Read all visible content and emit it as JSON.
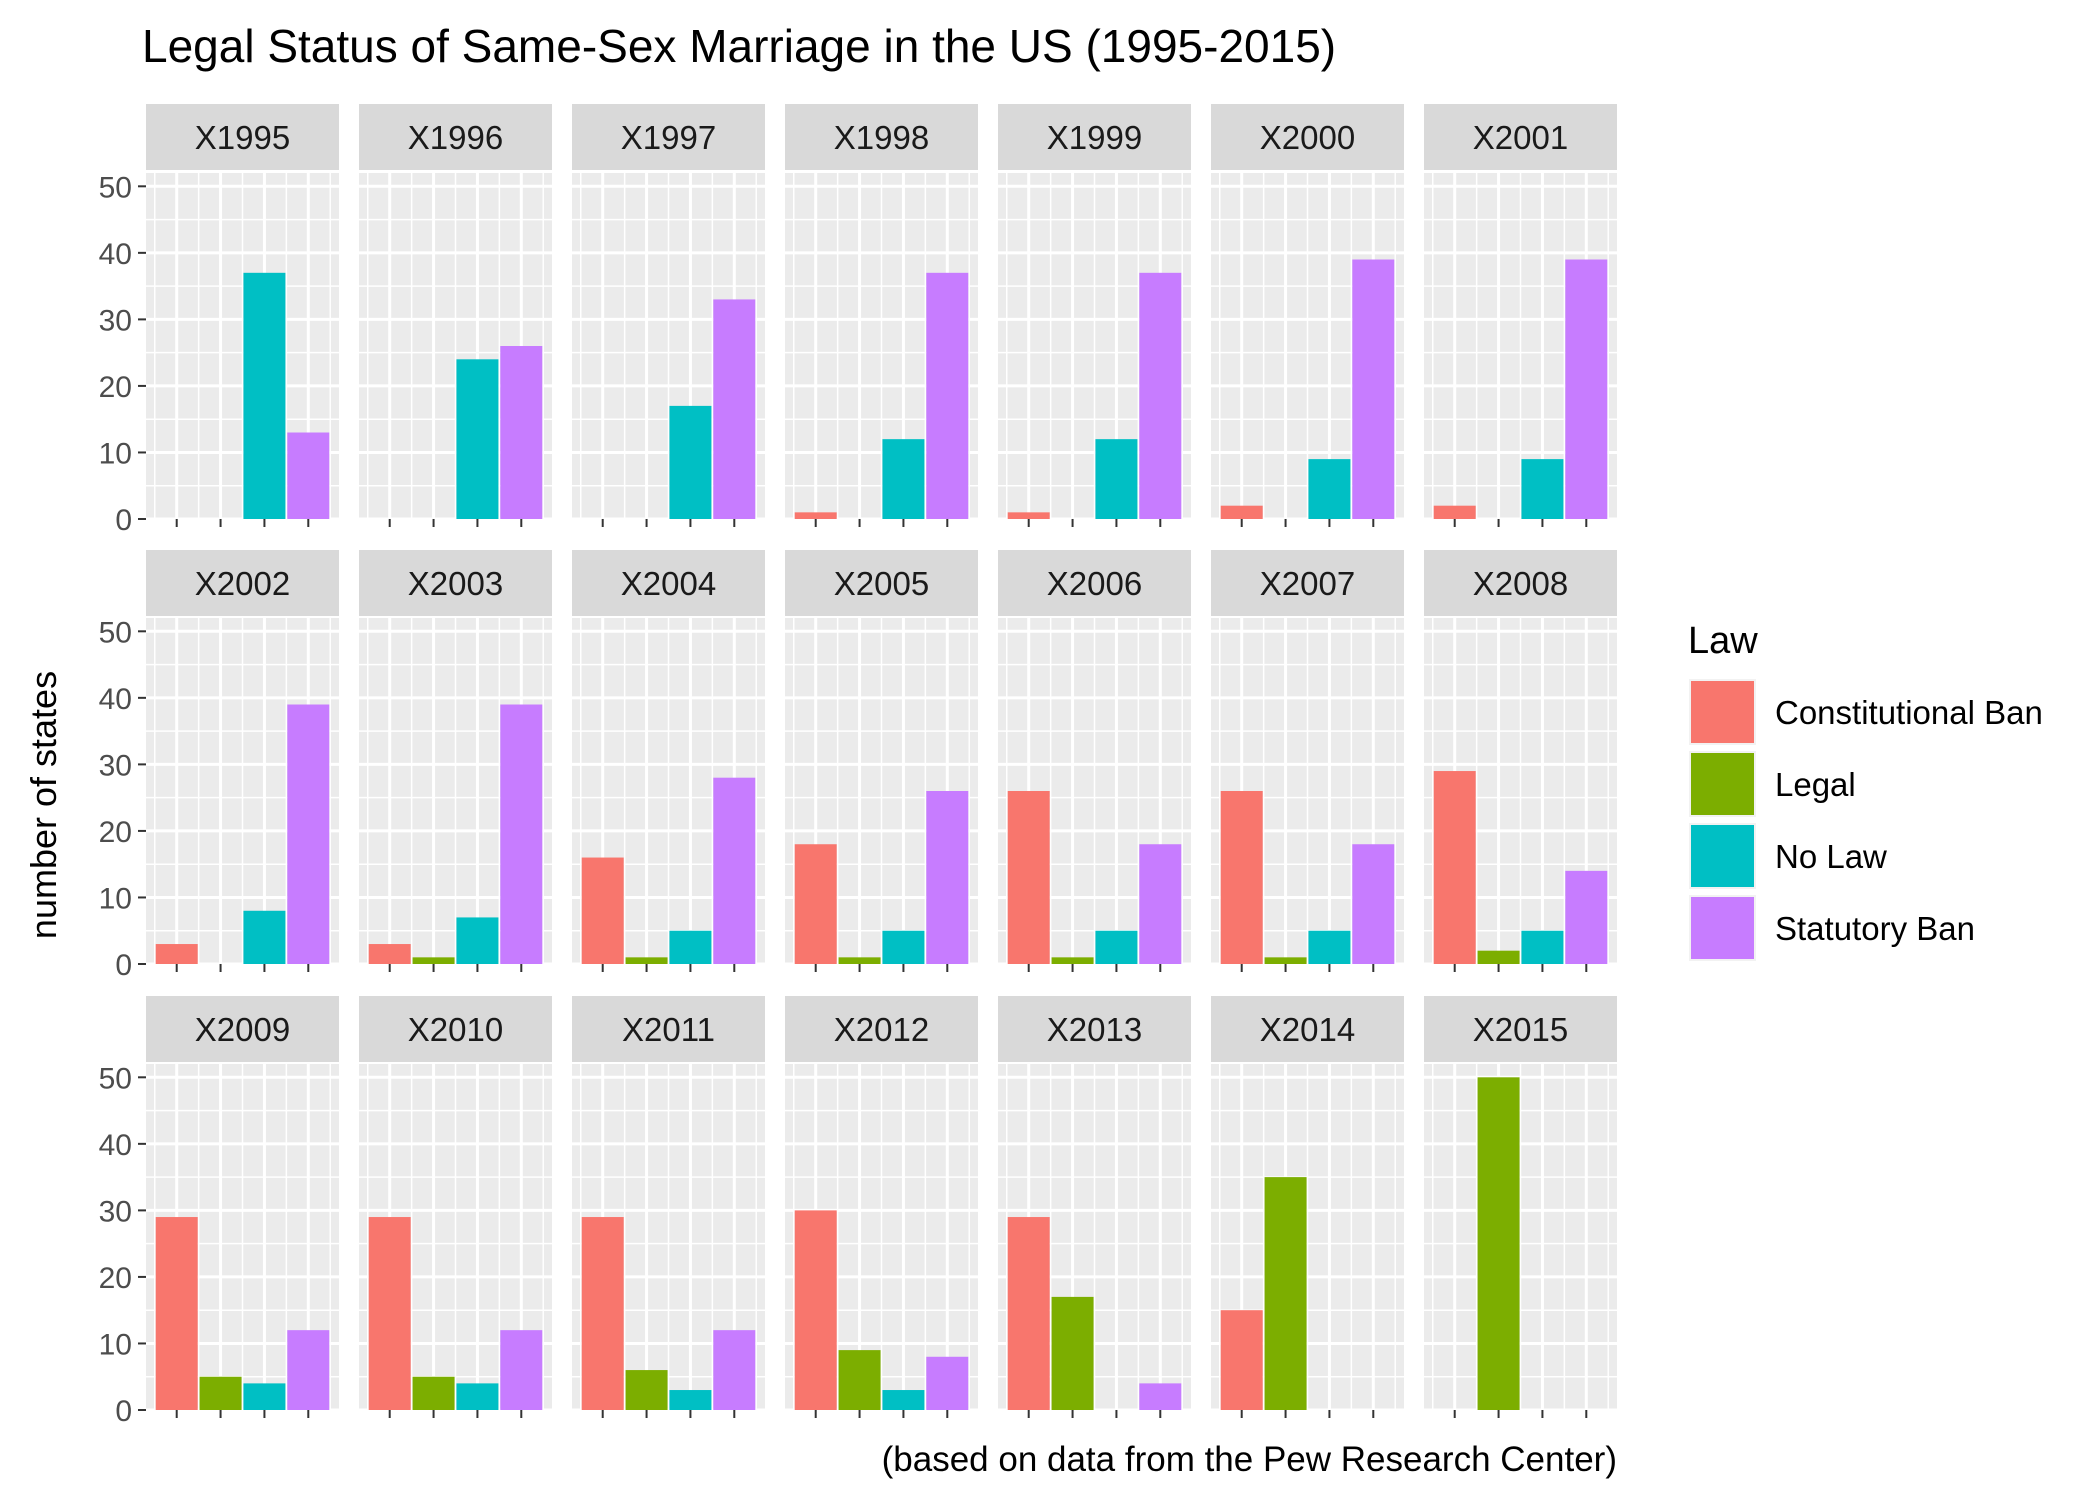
{
  "chart_data": {
    "type": "bar",
    "title": "Legal Status of Same-Sex Marriage in the US (1995-2015)",
    "caption": "(based on data from the Pew Research Center)",
    "ylabel": "number of states",
    "xlabel": "",
    "ylim": [
      0,
      52
    ],
    "yticks": [
      0,
      10,
      20,
      30,
      40,
      50
    ],
    "grid": true,
    "legend": {
      "title": "Law",
      "position": "right",
      "entries": [
        "Constitutional Ban",
        "Legal",
        "No Law",
        "Statutory Ban"
      ]
    },
    "colors": {
      "Constitutional Ban": "#f8766d",
      "Legal": "#7cae00",
      "No Law": "#00bfc4",
      "Statutory Ban": "#c77cff"
    },
    "categories": [
      "Constitutional Ban",
      "Legal",
      "No Law",
      "Statutory Ban"
    ],
    "facets": [
      {
        "label": "X1995",
        "values": [
          0,
          0,
          37,
          13
        ]
      },
      {
        "label": "X1996",
        "values": [
          0,
          0,
          24,
          26
        ]
      },
      {
        "label": "X1997",
        "values": [
          0,
          0,
          17,
          33
        ]
      },
      {
        "label": "X1998",
        "values": [
          1,
          0,
          12,
          37
        ]
      },
      {
        "label": "X1999",
        "values": [
          1,
          0,
          12,
          37
        ]
      },
      {
        "label": "X2000",
        "values": [
          2,
          0,
          9,
          39
        ]
      },
      {
        "label": "X2001",
        "values": [
          2,
          0,
          9,
          39
        ]
      },
      {
        "label": "X2002",
        "values": [
          3,
          0,
          8,
          39
        ]
      },
      {
        "label": "X2003",
        "values": [
          3,
          1,
          7,
          39
        ]
      },
      {
        "label": "X2004",
        "values": [
          16,
          1,
          5,
          28
        ]
      },
      {
        "label": "X2005",
        "values": [
          18,
          1,
          5,
          26
        ]
      },
      {
        "label": "X2006",
        "values": [
          26,
          1,
          5,
          18
        ]
      },
      {
        "label": "X2007",
        "values": [
          26,
          1,
          5,
          18
        ]
      },
      {
        "label": "X2008",
        "values": [
          29,
          2,
          5,
          14
        ]
      },
      {
        "label": "X2009",
        "values": [
          29,
          5,
          4,
          12
        ]
      },
      {
        "label": "X2010",
        "values": [
          29,
          5,
          4,
          12
        ]
      },
      {
        "label": "X2011",
        "values": [
          29,
          6,
          3,
          12
        ]
      },
      {
        "label": "X2012",
        "values": [
          30,
          9,
          3,
          8
        ]
      },
      {
        "label": "X2013",
        "values": [
          29,
          17,
          0,
          4
        ]
      },
      {
        "label": "X2014",
        "values": [
          15,
          35,
          0,
          0
        ]
      },
      {
        "label": "X2015",
        "values": [
          0,
          50,
          0,
          0
        ]
      }
    ]
  }
}
